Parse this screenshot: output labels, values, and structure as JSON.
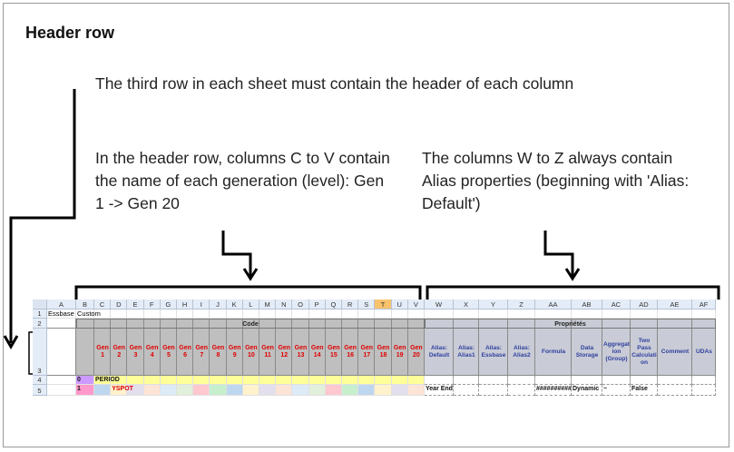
{
  "title": "Header row",
  "notes": [
    "The third row in each sheet must contain the header of each column",
    "In the header row, columns C to V contain the name of each generation (level): Gen 1 -> Gen 20",
    "The columns W to Z always contain Alias properties (beginning with 'Alias: Default')"
  ],
  "sheet": {
    "columns": [
      "A",
      "B",
      "C",
      "D",
      "E",
      "F",
      "G",
      "H",
      "I",
      "J",
      "K",
      "L",
      "M",
      "N",
      "O",
      "P",
      "Q",
      "R",
      "S",
      "T",
      "U",
      "V",
      "W",
      "X",
      "Y",
      "Z",
      "AA",
      "AB",
      "AC",
      "AD",
      "AE",
      "AF"
    ],
    "rows": [
      {
        "number": "1",
        "cells": {
          "A": "Essbase",
          "B": "Custom"
        }
      },
      {
        "number": "2",
        "cells": {
          "B": "Code",
          "W": "Propriétés"
        }
      },
      {
        "number": "3",
        "cells": {
          "C": "Gen 1",
          "D": "Gen 2",
          "E": "Gen 3",
          "F": "Gen 4",
          "G": "Gen 5",
          "H": "Gen 6",
          "I": "Gen 7",
          "J": "Gen 8",
          "K": "Gen 9",
          "L": "Gen 10",
          "M": "Gen 11",
          "N": "Gen 12",
          "O": "Gen 13",
          "P": "Gen 14",
          "Q": "Gen 15",
          "R": "Gen 16",
          "S": "Gen 17",
          "T": "Gen 18",
          "U": "Gen 19",
          "V": "Gen 20",
          "W": "Alias: Default",
          "X": "Alias: Alias1",
          "Y": "Alias: Essbase",
          "Z": "Alias: Alias2",
          "AA": "Formula",
          "AB": "Data Storage",
          "AC": "Aggregation (Group)",
          "AD": "Two Pass Calculation",
          "AE": "Comment",
          "AF": "UDAs"
        }
      },
      {
        "number": "4",
        "cells": {
          "B": "0",
          "C": "PERIOD"
        }
      },
      {
        "number": "5",
        "cells": {
          "B": "1",
          "D": "YSPOT",
          "W": "Year End",
          "AA": "##########",
          "AB": "Dynamic",
          "AC": "~",
          "AD": "False"
        }
      }
    ]
  }
}
